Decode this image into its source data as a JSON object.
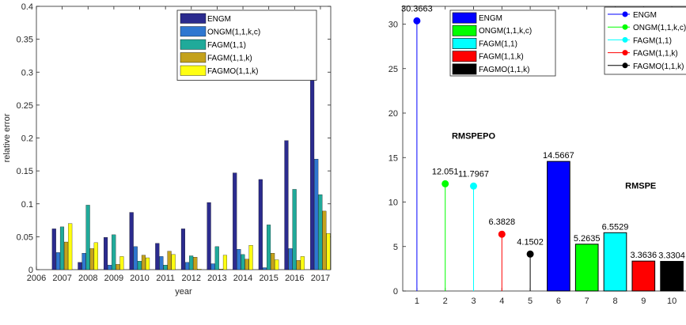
{
  "colors": {
    "ENGM": "#2b2b8e",
    "ONGM(1,1,k,c)": "#2f77d0",
    "FAGM(1,1)": "#20aa9a",
    "FAGM(1,1,k)": "#c4a21c",
    "FAGMO(1,1,k)": "#ffff12"
  },
  "chart_data": [
    {
      "type": "bar",
      "xlabel": "year",
      "ylabel": "relative error",
      "ylim": [
        0,
        0.4
      ],
      "xlim": [
        2006,
        2017.4
      ],
      "x_ticks": [
        "2006",
        "2007",
        "2008",
        "2009",
        "2010",
        "2011",
        "2012",
        "2013",
        "2014",
        "2015",
        "2016",
        "2017"
      ],
      "y_ticks": [
        "0",
        "0.05",
        "0.1",
        "0.15",
        "0.2",
        "0.25",
        "0.3",
        "0.35",
        "0.4"
      ],
      "categories": [
        2007,
        2008,
        2009,
        2010,
        2011,
        2012,
        2013,
        2014,
        2015,
        2016,
        2017
      ],
      "legend_position": "top-right",
      "series": [
        {
          "name": "ENGM",
          "values": [
            0.062,
            0.011,
            0.049,
            0.087,
            0.04,
            0.062,
            0.102,
            0.147,
            0.137,
            0.196,
            0.382
          ]
        },
        {
          "name": "ONGM(1,1,k,c)",
          "values": [
            0.026,
            0.025,
            0.007,
            0.035,
            0.02,
            0.011,
            0.009,
            0.031,
            0.003,
            0.032,
            0.168
          ]
        },
        {
          "name": "FAGM(1,1)",
          "values": [
            0.065,
            0.098,
            0.053,
            0.013,
            0.007,
            0.021,
            0.035,
            0.023,
            0.068,
            0.122,
            0.114
          ]
        },
        {
          "name": "FAGM(1,1,k)",
          "values": [
            0.042,
            0.032,
            0.008,
            0.022,
            0.028,
            0.019,
            0.001,
            0.016,
            0.025,
            0.014,
            0.089
          ]
        },
        {
          "name": "FAGMO(1,1,k)",
          "values": [
            0.07,
            0.041,
            0.02,
            0.018,
            0.023,
            0.001,
            0.022,
            0.037,
            0.015,
            0.02,
            0.055
          ]
        }
      ]
    },
    {
      "type": "bar",
      "ylim": [
        0,
        32
      ],
      "xlim": [
        0.5,
        10.5
      ],
      "x_ticks": [
        "1",
        "2",
        "3",
        "4",
        "5",
        "6",
        "7",
        "8",
        "9",
        "10"
      ],
      "y_ticks": [
        "0",
        "5",
        "10",
        "15",
        "20",
        "25",
        "30"
      ],
      "annotations": [
        "RMSPEPO",
        "RMSPE"
      ],
      "stems": [
        {
          "name": "ENGM",
          "x": 1,
          "value": 30.3663,
          "label": "30.3663",
          "color": "#0000ff"
        },
        {
          "name": "ONGM(1,1,k,c)",
          "x": 2,
          "value": 12.051,
          "label": "12.051",
          "color": "#00ff00"
        },
        {
          "name": "FAGM(1,1)",
          "x": 3,
          "value": 11.7967,
          "label": "11.7967",
          "color": "#00ffff"
        },
        {
          "name": "FAGM(1,1,k)",
          "x": 4,
          "value": 6.3828,
          "label": "6.3828",
          "color": "#ff0000"
        },
        {
          "name": "FAGMO(1,1,k)",
          "x": 5,
          "value": 4.1502,
          "label": "4.1502",
          "color": "#000000"
        }
      ],
      "bars": [
        {
          "name": "ENGM",
          "x": 6,
          "value": 14.5667,
          "label": "14.5667",
          "color": "#0000ff"
        },
        {
          "name": "ONGM(1,1,k,c)",
          "x": 7,
          "value": 5.2635,
          "label": "5.2635",
          "color": "#00ff00"
        },
        {
          "name": "FAGM(1,1)",
          "x": 8,
          "value": 6.5529,
          "label": "6.5529",
          "color": "#00ffff"
        },
        {
          "name": "FAGM(1,1,k)",
          "x": 9,
          "value": 3.3636,
          "label": "3.3636",
          "color": "#ff0000"
        },
        {
          "name": "FAGMO(1,1,k)",
          "x": 10,
          "value": 3.3304,
          "label": "3.3304",
          "color": "#000000"
        }
      ],
      "bar_legend": [
        "ENGM",
        "ONGM(1,1,k,c)",
        "FAGM(1,1)",
        "FAGM(1,1,k)",
        "FAGMO(1,1,k)"
      ],
      "stem_legend": [
        "ENGM",
        "ONGM(1,1,k,c)",
        "FAGM(1,1)",
        "FAGM(1,1,k)",
        "FAGMO(1,1,k)"
      ]
    }
  ]
}
